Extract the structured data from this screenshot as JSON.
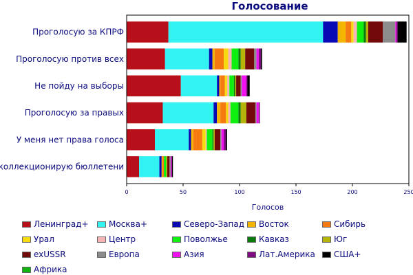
{
  "chart_data": {
    "type": "bar",
    "orientation": "horizontal",
    "stacked": true,
    "title": "Голосование",
    "xlabel": "Голосов",
    "ylabel": "",
    "xlim": [
      0,
      250
    ],
    "xticks": [
      "0",
      "50",
      "100",
      "150",
      "200",
      "250"
    ],
    "grid": false,
    "legend_position": "bottom",
    "categories": [
      "Проголосую за КПРФ",
      "Проголосую против всех",
      "Не пойду на выборы",
      "Проголосую за правых",
      "У меня нет права голоса",
      "Я коллекционирую бюллетени"
    ],
    "series": [
      {
        "name": "Ленинград+",
        "color": "#b8101a",
        "values": [
          37,
          34,
          48,
          32,
          25,
          11
        ]
      },
      {
        "name": "Москва+",
        "color": "#33f2f2",
        "values": [
          137,
          39,
          32,
          45,
          30,
          18
        ]
      },
      {
        "name": "Северо-Запад",
        "color": "#0a0ab4",
        "values": [
          13,
          3,
          2,
          3,
          2,
          2
        ]
      },
      {
        "name": "Восток",
        "color": "#f5b400",
        "values": [
          7,
          2,
          1,
          3,
          2,
          1
        ]
      },
      {
        "name": "Сибирь",
        "color": "#f57a10",
        "values": [
          5,
          8,
          4,
          5,
          8,
          1
        ]
      },
      {
        "name": "Урал",
        "color": "#f7da10",
        "values": [
          2,
          4,
          2,
          2,
          3,
          0
        ]
      },
      {
        "name": "Центр",
        "color": "#f7b4b4",
        "values": [
          3,
          3,
          2,
          2,
          1,
          0
        ]
      },
      {
        "name": "Поволжье",
        "color": "#10f010",
        "values": [
          6,
          6,
          4,
          7,
          5,
          2
        ]
      },
      {
        "name": "Кавказ",
        "color": "#0a7a0a",
        "values": [
          2,
          2,
          1,
          2,
          1,
          0
        ]
      },
      {
        "name": "Юг",
        "color": "#b4b40a",
        "values": [
          2,
          4,
          1,
          5,
          1,
          1
        ]
      },
      {
        "name": "exUSSR",
        "color": "#730a0a",
        "values": [
          13,
          8,
          4,
          8,
          5,
          2
        ]
      },
      {
        "name": "Европа",
        "color": "#8c8c8c",
        "values": [
          11,
          2,
          1,
          1,
          1,
          1
        ]
      },
      {
        "name": "Азия",
        "color": "#f010f0",
        "values": [
          1,
          2,
          4,
          2,
          2,
          1
        ]
      },
      {
        "name": "Лат.Америка",
        "color": "#800a80",
        "values": [
          1,
          2,
          1,
          1,
          2,
          0
        ]
      },
      {
        "name": "США+",
        "color": "#000000",
        "values": [
          8,
          1,
          2,
          0,
          1,
          1
        ]
      },
      {
        "name": "Африка",
        "color": "#10b410",
        "values": [
          0,
          0,
          0,
          0,
          0,
          0
        ]
      }
    ]
  }
}
